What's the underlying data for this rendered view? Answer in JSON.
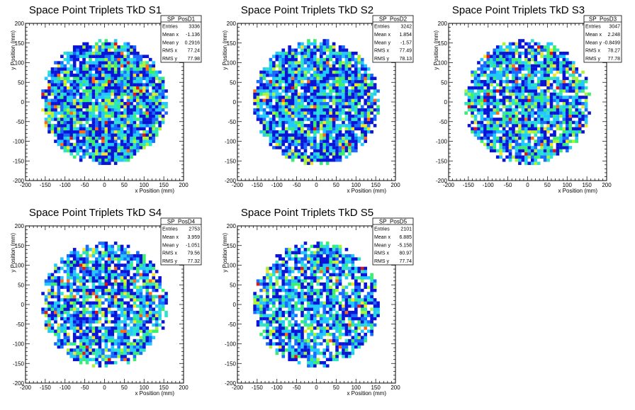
{
  "colors": {
    "background": "#ffffff",
    "frame": "#000000",
    "palette": [
      "#0a14d6",
      "#1a6cff",
      "#22c8ff",
      "#2de4c8",
      "#3aef6e",
      "#a8f53b",
      "#f5e42a",
      "#ff6a12",
      "#e31616"
    ]
  },
  "chart_data": [
    {
      "type": "heatmap",
      "title": "Space Point Triplets TkD S1",
      "xlabel": "x Position (mm)",
      "ylabel": "y Position (mm)",
      "xlim": [
        -200,
        200
      ],
      "ylim": [
        -200,
        200
      ],
      "xticks": [
        "-200",
        "-150",
        "-100",
        "-50",
        "0",
        "50",
        "100",
        "150",
        "200"
      ],
      "yticks": [
        "-200",
        "-150",
        "-100",
        "-50",
        "0",
        "50",
        "100",
        "150",
        "200"
      ],
      "region": {
        "shape": "disc",
        "center": [
          0,
          0
        ],
        "radius": 160
      },
      "stats": {
        "name": "SP_PosD1",
        "rows": [
          [
            "Entries",
            "3336"
          ],
          [
            "Mean x",
            "-1.136"
          ],
          [
            "Mean y",
            "0.2916"
          ],
          [
            "RMS x",
            "77.24"
          ],
          [
            "RMS y",
            "77.98"
          ]
        ]
      }
    },
    {
      "type": "heatmap",
      "title": "Space Point Triplets TkD S2",
      "xlabel": "x Position (mm)",
      "ylabel": "y Position (mm)",
      "xlim": [
        -200,
        200
      ],
      "ylim": [
        -200,
        200
      ],
      "xticks": [
        "-200",
        "-150",
        "-100",
        "-50",
        "0",
        "50",
        "100",
        "150",
        "200"
      ],
      "yticks": [
        "-200",
        "-150",
        "-100",
        "-50",
        "0",
        "50",
        "100",
        "150",
        "200"
      ],
      "region": {
        "shape": "disc",
        "center": [
          0,
          0
        ],
        "radius": 160
      },
      "stats": {
        "name": "SP_PosD2",
        "rows": [
          [
            "Entries",
            "3242"
          ],
          [
            "Mean x",
            "1.854"
          ],
          [
            "Mean y",
            "-1.57"
          ],
          [
            "RMS x",
            "77.49"
          ],
          [
            "RMS y",
            "78.13"
          ]
        ]
      }
    },
    {
      "type": "heatmap",
      "title": "Space Point Triplets TkD S3",
      "xlabel": "x Position (mm)",
      "ylabel": "y Position (mm)",
      "xlim": [
        -200,
        200
      ],
      "ylim": [
        -200,
        200
      ],
      "xticks": [
        "-200",
        "-150",
        "-100",
        "-50",
        "0",
        "50",
        "100",
        "150",
        "200"
      ],
      "yticks": [
        "-200",
        "-150",
        "-100",
        "-50",
        "0",
        "50",
        "100",
        "150",
        "200"
      ],
      "region": {
        "shape": "disc",
        "center": [
          0,
          0
        ],
        "radius": 160
      },
      "stats": {
        "name": "SP_PosD3",
        "rows": [
          [
            "Entries",
            "3047"
          ],
          [
            "Mean x",
            "2.248"
          ],
          [
            "Mean y",
            "-0.8499"
          ],
          [
            "RMS x",
            "78.27"
          ],
          [
            "RMS y",
            "77.78"
          ]
        ]
      }
    },
    {
      "type": "heatmap",
      "title": "Space Point Triplets TkD S4",
      "xlabel": "x Position (mm)",
      "ylabel": "y Position (mm)",
      "xlim": [
        -200,
        200
      ],
      "ylim": [
        -200,
        200
      ],
      "xticks": [
        "-200",
        "-150",
        "-100",
        "-50",
        "0",
        "50",
        "100",
        "150",
        "200"
      ],
      "yticks": [
        "-200",
        "-150",
        "-100",
        "-50",
        "0",
        "50",
        "100",
        "150",
        "200"
      ],
      "region": {
        "shape": "disc",
        "center": [
          0,
          0
        ],
        "radius": 160
      },
      "stats": {
        "name": "SP_PosD4",
        "rows": [
          [
            "Entries",
            "2753"
          ],
          [
            "Mean x",
            "3.959"
          ],
          [
            "Mean y",
            "-1.051"
          ],
          [
            "RMS x",
            "79.56"
          ],
          [
            "RMS y",
            "77.32"
          ]
        ]
      }
    },
    {
      "type": "heatmap",
      "title": "Space Point Triplets TkD S5",
      "xlabel": "x Position (mm)",
      "ylabel": "y Position (mm)",
      "xlim": [
        -200,
        200
      ],
      "ylim": [
        -200,
        200
      ],
      "xticks": [
        "-200",
        "-150",
        "-100",
        "-50",
        "0",
        "50",
        "100",
        "150",
        "200"
      ],
      "yticks": [
        "-200",
        "-150",
        "-100",
        "-50",
        "0",
        "50",
        "100",
        "150",
        "200"
      ],
      "region": {
        "shape": "disc",
        "center": [
          0,
          0
        ],
        "radius": 160
      },
      "stats": {
        "name": "SP_PosD5",
        "rows": [
          [
            "Entries",
            "2101"
          ],
          [
            "Mean x",
            "6.885"
          ],
          [
            "Mean y",
            "-5.158"
          ],
          [
            "RMS x",
            "80.97"
          ],
          [
            "RMS y",
            "77.74"
          ]
        ]
      }
    }
  ]
}
